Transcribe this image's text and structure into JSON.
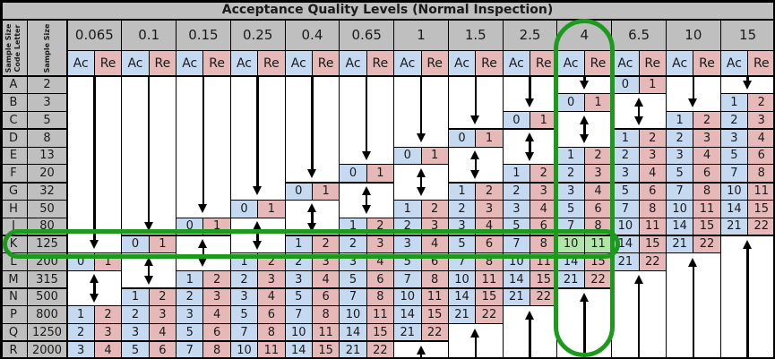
{
  "title": "Acceptance Quality Levels (Normal Inspection)",
  "corner": {
    "code_letter": "Sample Size\nCode Letter",
    "sample_size": "Sample Size"
  },
  "sub_headers": {
    "accept": "Ac",
    "reject": "Re"
  },
  "rows": [
    {
      "code": "A",
      "size": "2"
    },
    {
      "code": "B",
      "size": "3"
    },
    {
      "code": "C",
      "size": "5"
    },
    {
      "code": "D",
      "size": "8"
    },
    {
      "code": "E",
      "size": "13"
    },
    {
      "code": "F",
      "size": "20"
    },
    {
      "code": "G",
      "size": "32"
    },
    {
      "code": "H",
      "size": "50"
    },
    {
      "code": "J",
      "size": "80"
    },
    {
      "code": "K",
      "size": "125"
    },
    {
      "code": "L",
      "size": "200"
    },
    {
      "code": "M",
      "size": "315"
    },
    {
      "code": "N",
      "size": "500"
    },
    {
      "code": "P",
      "size": "800"
    },
    {
      "code": "Q",
      "size": "1250"
    },
    {
      "code": "R",
      "size": "2000"
    }
  ],
  "columns": [
    {
      "aql": "0.065",
      "arrows": {
        "down": [
          "A",
          "K"
        ],
        "dbl": [
          "M",
          "N"
        ],
        "up": null
      },
      "plans": {
        "L": [
          0,
          1
        ],
        "P": [
          1,
          2
        ],
        "Q": [
          2,
          3
        ],
        "R": [
          3,
          4
        ]
      }
    },
    {
      "aql": "0.1",
      "arrows": {
        "down": [
          "A",
          "J"
        ],
        "dbl": [
          "L",
          "M"
        ],
        "up": null
      },
      "plans": {
        "K": [
          0,
          1
        ],
        "N": [
          1,
          2
        ],
        "P": [
          2,
          3
        ],
        "Q": [
          3,
          4
        ],
        "R": [
          5,
          6
        ]
      }
    },
    {
      "aql": "0.15",
      "arrows": {
        "down": [
          "A",
          "H"
        ],
        "dbl": [
          "K",
          "L"
        ],
        "up": null
      },
      "plans": {
        "J": [
          0,
          1
        ],
        "M": [
          1,
          2
        ],
        "N": [
          2,
          3
        ],
        "P": [
          3,
          4
        ],
        "Q": [
          5,
          6
        ],
        "R": [
          7,
          8
        ]
      }
    },
    {
      "aql": "0.25",
      "arrows": {
        "down": [
          "A",
          "G"
        ],
        "dbl": [
          "J",
          "K"
        ],
        "up": null
      },
      "plans": {
        "H": [
          0,
          1
        ],
        "L": [
          1,
          2
        ],
        "M": [
          2,
          3
        ],
        "N": [
          3,
          4
        ],
        "P": [
          5,
          6
        ],
        "Q": [
          7,
          8
        ],
        "R": [
          10,
          11
        ]
      }
    },
    {
      "aql": "0.4",
      "arrows": {
        "down": [
          "A",
          "F"
        ],
        "dbl": [
          "H",
          "J"
        ],
        "up": null
      },
      "plans": {
        "G": [
          0,
          1
        ],
        "K": [
          1,
          2
        ],
        "L": [
          2,
          3
        ],
        "M": [
          3,
          4
        ],
        "N": [
          5,
          6
        ],
        "P": [
          7,
          8
        ],
        "Q": [
          10,
          11
        ],
        "R": [
          14,
          15
        ]
      }
    },
    {
      "aql": "0.65",
      "arrows": {
        "down": [
          "A",
          "E"
        ],
        "dbl": [
          "G",
          "H"
        ],
        "up": null
      },
      "plans": {
        "F": [
          0,
          1
        ],
        "J": [
          1,
          2
        ],
        "K": [
          2,
          3
        ],
        "L": [
          3,
          4
        ],
        "M": [
          5,
          6
        ],
        "N": [
          7,
          8
        ],
        "P": [
          10,
          11
        ],
        "Q": [
          14,
          15
        ],
        "R": [
          21,
          22
        ]
      }
    },
    {
      "aql": "1",
      "arrows": {
        "down": [
          "A",
          "D"
        ],
        "dbl": [
          "F",
          "G"
        ],
        "up": [
          "R",
          "R"
        ]
      },
      "plans": {
        "E": [
          0,
          1
        ],
        "H": [
          1,
          2
        ],
        "J": [
          2,
          3
        ],
        "K": [
          3,
          4
        ],
        "L": [
          5,
          6
        ],
        "M": [
          7,
          8
        ],
        "N": [
          10,
          11
        ],
        "P": [
          14,
          15
        ],
        "Q": [
          21,
          22
        ]
      }
    },
    {
      "aql": "1.5",
      "arrows": {
        "down": [
          "A",
          "C"
        ],
        "dbl": [
          "E",
          "F"
        ],
        "up": [
          "Q",
          "R"
        ]
      },
      "plans": {
        "D": [
          0,
          1
        ],
        "G": [
          1,
          2
        ],
        "H": [
          2,
          3
        ],
        "J": [
          3,
          4
        ],
        "K": [
          5,
          6
        ],
        "L": [
          7,
          8
        ],
        "M": [
          10,
          11
        ],
        "N": [
          14,
          15
        ],
        "P": [
          21,
          22
        ]
      }
    },
    {
      "aql": "2.5",
      "arrows": {
        "down": [
          "A",
          "B"
        ],
        "dbl": [
          "D",
          "E"
        ],
        "up": [
          "P",
          "R"
        ]
      },
      "plans": {
        "C": [
          0,
          1
        ],
        "F": [
          1,
          2
        ],
        "G": [
          2,
          3
        ],
        "H": [
          3,
          4
        ],
        "J": [
          5,
          6
        ],
        "K": [
          7,
          8
        ],
        "L": [
          10,
          11
        ],
        "M": [
          14,
          15
        ],
        "N": [
          21,
          22
        ]
      }
    },
    {
      "aql": "4",
      "arrows": {
        "down": [
          "A",
          "A"
        ],
        "dbl": [
          "C",
          "D"
        ],
        "up": [
          "N",
          "R"
        ]
      },
      "plans": {
        "B": [
          0,
          1
        ],
        "E": [
          1,
          2
        ],
        "F": [
          2,
          3
        ],
        "G": [
          3,
          4
        ],
        "H": [
          5,
          6
        ],
        "J": [
          7,
          8
        ],
        "K": [
          10,
          11
        ],
        "L": [
          14,
          15
        ],
        "M": [
          21,
          22
        ]
      }
    },
    {
      "aql": "6.5",
      "arrows": {
        "down": null,
        "dbl": [
          "B",
          "C"
        ],
        "up": [
          "M",
          "R"
        ]
      },
      "plans": {
        "A": [
          0,
          1
        ],
        "D": [
          1,
          2
        ],
        "E": [
          2,
          3
        ],
        "F": [
          3,
          4
        ],
        "G": [
          5,
          6
        ],
        "H": [
          7,
          8
        ],
        "J": [
          10,
          11
        ],
        "K": [
          14,
          15
        ],
        "L": [
          21,
          22
        ]
      }
    },
    {
      "aql": "10",
      "arrows": {
        "down": [
          "A",
          "B"
        ],
        "dbl": null,
        "up": [
          "L",
          "R"
        ]
      },
      "plans": {
        "C": [
          1,
          2
        ],
        "D": [
          2,
          3
        ],
        "E": [
          3,
          4
        ],
        "F": [
          5,
          6
        ],
        "G": [
          7,
          8
        ],
        "H": [
          10,
          11
        ],
        "J": [
          14,
          15
        ],
        "K": [
          21,
          22
        ]
      }
    },
    {
      "aql": "15",
      "arrows": {
        "down": [
          "A",
          "A"
        ],
        "dbl": null,
        "up": [
          "K",
          "R"
        ]
      },
      "plans": {
        "B": [
          1,
          2
        ],
        "C": [
          2,
          3
        ],
        "D": [
          3,
          4
        ],
        "E": [
          5,
          6
        ],
        "F": [
          7,
          8
        ],
        "G": [
          10,
          11
        ],
        "H": [
          14,
          15
        ],
        "J": [
          21,
          22
        ]
      }
    }
  ],
  "highlight": {
    "row": "K",
    "col": "4",
    "ac": 10,
    "re": 11
  },
  "annotations": {
    "column_oval_col": "4",
    "row_oval_row": "K"
  },
  "colors": {
    "header_bg": "#bfbfbf",
    "accept_bg": "#c5d9f1",
    "reject_bg": "#e6b8b7",
    "highlight_bg": "#b2e5aa",
    "oval_stroke": "#1b9a1b",
    "grid": "#000000",
    "text": "#1a1a1a"
  }
}
